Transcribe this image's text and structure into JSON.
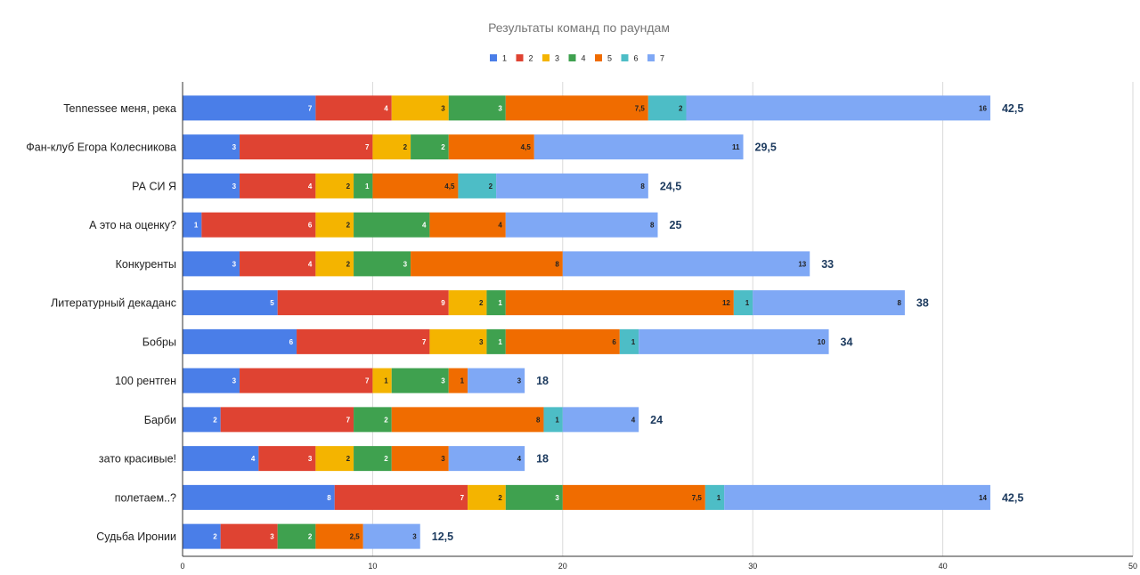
{
  "chart_data": {
    "type": "bar",
    "orientation": "horizontal",
    "stacked": true,
    "title": "Результаты команд по раундам",
    "xlabel": "",
    "ylabel": "",
    "xlim": [
      0,
      50
    ],
    "xticks": [
      0,
      10,
      20,
      30,
      40,
      50
    ],
    "grid": true,
    "legend_position": "top",
    "categories": [
      "Tennessee меня, река",
      "Фан-клуб Егора Колесникова",
      "РА СИ Я",
      "А это на оценку?",
      "Конкуренты",
      "Литературный декаданс",
      "Бобры",
      "100 рентген",
      "Барби",
      "зато красивые!",
      "полетаем..?",
      "Судьба Иронии"
    ],
    "series": [
      {
        "name": "1",
        "color": "#4a7ee8",
        "label_color": "#ffffff",
        "values": [
          7,
          3,
          3,
          1,
          3,
          5,
          6,
          3,
          2,
          4,
          8,
          2
        ]
      },
      {
        "name": "2",
        "color": "#df4332",
        "label_color": "#ffffff",
        "values": [
          4,
          7,
          4,
          6,
          4,
          9,
          7,
          7,
          7,
          3,
          7,
          3
        ]
      },
      {
        "name": "3",
        "color": "#f4b400",
        "label_color": "#222222",
        "values": [
          3,
          2,
          2,
          2,
          2,
          2,
          3,
          1,
          0,
          2,
          2,
          0
        ]
      },
      {
        "name": "4",
        "color": "#3fa14f",
        "label_color": "#ffffff",
        "values": [
          3,
          2,
          1,
          4,
          3,
          1,
          1,
          3,
          2,
          2,
          3,
          2
        ]
      },
      {
        "name": "5",
        "color": "#f06c00",
        "label_color": "#222222",
        "values": [
          7.5,
          4.5,
          4.5,
          4,
          8,
          12,
          6,
          1,
          8,
          3,
          7.5,
          2.5
        ]
      },
      {
        "name": "6",
        "color": "#4dbdc6",
        "label_color": "#222222",
        "values": [
          2,
          0,
          2,
          0,
          0,
          1,
          1,
          0,
          1,
          0,
          1,
          0
        ]
      },
      {
        "name": "7",
        "color": "#7fa8f5",
        "label_color": "#222222",
        "values": [
          16,
          11,
          8,
          8,
          13,
          8,
          10,
          3,
          4,
          4,
          14,
          3
        ]
      }
    ],
    "totals": [
      "42,5",
      "29,5",
      "24,5",
      "25",
      "33",
      "38",
      "34",
      "18",
      "24",
      "18",
      "42,5",
      "12,5"
    ]
  }
}
